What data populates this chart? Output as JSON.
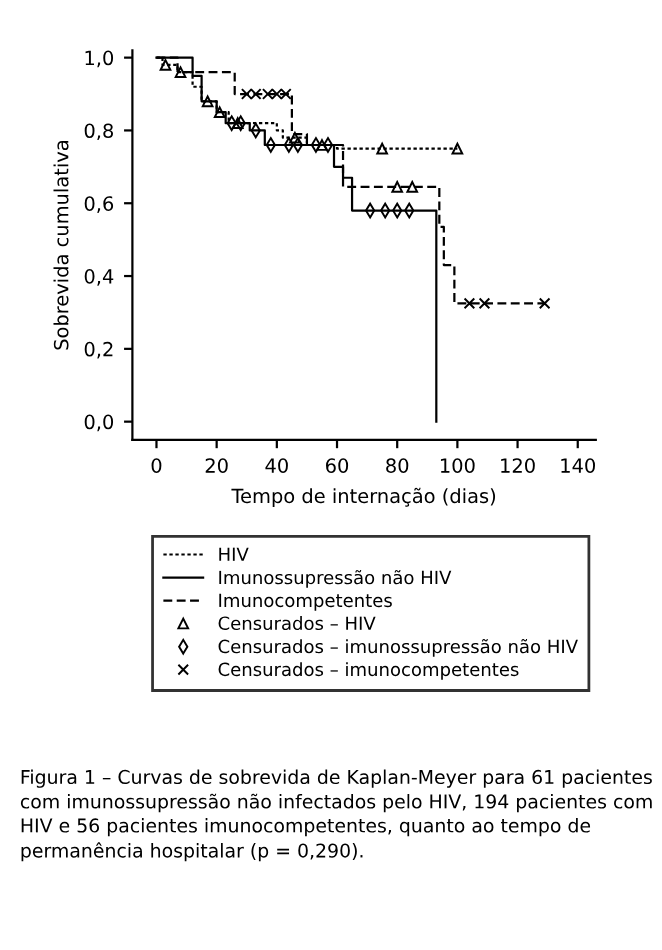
{
  "chart_data": {
    "type": "step",
    "xlabel": "Tempo de internação (dias)",
    "ylabel": "Sobrevida cumulativa",
    "xlim": [
      -8,
      146
    ],
    "ylim": [
      -0.05,
      1.02
    ],
    "xticks": [
      0,
      20,
      40,
      60,
      80,
      100,
      120,
      140
    ],
    "yticks": [
      {
        "value": 0,
        "label": "0,0"
      },
      {
        "value": 0.2,
        "label": "0,2"
      },
      {
        "value": 0.4,
        "label": "0,4"
      },
      {
        "value": 0.6,
        "label": "0,6"
      },
      {
        "value": 0.8,
        "label": "0,8"
      },
      {
        "value": 1,
        "label": "1,0"
      }
    ],
    "grid": false,
    "legend": "bottom",
    "series": [
      {
        "name": "HIV",
        "color": "#000000",
        "line_style": "dotted",
        "x": [
          0,
          2,
          7,
          12,
          15,
          20,
          24,
          40,
          42,
          50,
          60,
          100
        ],
        "values": [
          1.0,
          0.98,
          0.96,
          0.92,
          0.88,
          0.85,
          0.82,
          0.8,
          0.78,
          0.76,
          0.75,
          0.75
        ]
      },
      {
        "name": "Imunossupressão não HIV",
        "color": "#000000",
        "line_style": "solid",
        "x": [
          0,
          12,
          15,
          20,
          23,
          31,
          36,
          59,
          62,
          65,
          93,
          93
        ],
        "values": [
          1.0,
          0.95,
          0.88,
          0.85,
          0.82,
          0.8,
          0.76,
          0.7,
          0.67,
          0.58,
          0.58,
          0.0
        ]
      },
      {
        "name": "Imunocompetentes",
        "color": "#000000",
        "line_style": "dashed",
        "x": [
          0,
          7,
          26,
          45,
          50,
          62,
          94,
          95.5,
          99,
          129
        ],
        "values": [
          1.0,
          0.96,
          0.9,
          0.79,
          0.76,
          0.645,
          0.535,
          0.43,
          0.325,
          0.325
        ]
      },
      {
        "name": "Censurados – HIV",
        "type": "scatter",
        "color": "#000000",
        "marker": "triangle",
        "x": [
          3,
          8,
          17,
          21,
          27,
          46,
          55,
          75,
          100,
          80,
          85
        ],
        "values": [
          0.98,
          0.96,
          0.88,
          0.85,
          0.82,
          0.78,
          0.76,
          0.75,
          0.75,
          0.645,
          0.645
        ]
      },
      {
        "name": "Censurados – imunossupressão não HIV",
        "type": "scatter",
        "color": "#000000",
        "marker": "diamond",
        "x": [
          25,
          28,
          33,
          38,
          44,
          47,
          53,
          57,
          71,
          76,
          80,
          84
        ],
        "values": [
          0.82,
          0.82,
          0.8,
          0.76,
          0.76,
          0.76,
          0.76,
          0.76,
          0.58,
          0.58,
          0.58,
          0.58
        ]
      },
      {
        "name": "Censurados – imunocompetentes",
        "type": "scatter",
        "color": "#000000",
        "marker": "cross",
        "x": [
          30,
          33,
          37,
          40,
          43,
          104,
          109,
          129
        ],
        "values": [
          0.9,
          0.9,
          0.9,
          0.9,
          0.9,
          0.325,
          0.325,
          0.325
        ]
      }
    ],
    "annotations": [
      "Figura 1 – Curvas de sobrevida de Kaplan-Meyer para 61 pacientes com imunossupressão não infectados pelo HIV, 194 pacientes com HIV e 56 pacientes imunocompetentes, quanto ao tempo de permanência hospitalar (p = 0,290)."
    ]
  }
}
